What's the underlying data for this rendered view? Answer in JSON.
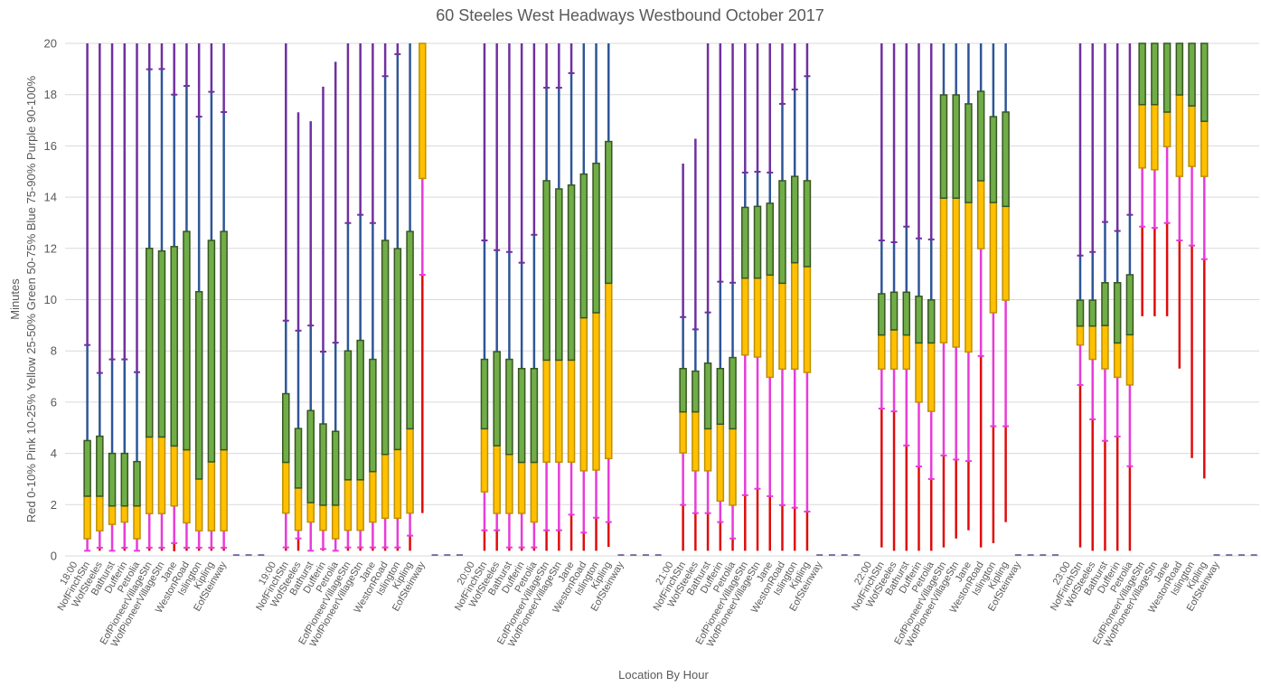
{
  "chart_data": {
    "type": "bar",
    "variant": "percentile-stacked-box",
    "title": "60 Steeles West Headways Westbound October 2017",
    "xlabel": "Location By Hour",
    "ylabel": {
      "line1": "Minutes",
      "line2": "Red 0-10%  Pink 10-25%  Yellow 25-50%  Green 50-75%  Blue 75-90%  Purple 90-100%"
    },
    "ylim": [
      0,
      20
    ],
    "yticks": [
      0,
      2,
      4,
      6,
      8,
      10,
      12,
      14,
      16,
      18,
      20
    ],
    "grid": true,
    "legend": "none (encoded in y-axis title)",
    "percentile_keys": [
      "p0",
      "p10",
      "p25",
      "p50",
      "p75",
      "p90",
      "p100"
    ],
    "note": "values above 20 are clipped at the axis maximum and recorded as 20; null = no data (shown as a dash at 0)",
    "colors": {
      "red_0_10": "#E00B0B",
      "pink_10_25": "#E83CD8",
      "yellow_25_50": "#FFC000",
      "yellow_border": "#BF9000",
      "green_50_75": "#70AD47",
      "green_border": "#375623",
      "blue_75_90": "#2F5597",
      "purple_90_100": "#7030A0",
      "empty_dash": "#5B4A8A",
      "grid": "#D9D9D9",
      "text": "#595959"
    },
    "blank_slots_per_group": 3,
    "stations": [
      "NofFinchStn",
      "WofSteeles",
      "Bathurst",
      "Dufferin",
      "Petrolia",
      "EofPioneerVillageStn",
      "WofPioneerVillageStn",
      "Jane",
      "WestonRoad",
      "Islington",
      "Kipling",
      "EofSteinway"
    ],
    "groups": [
      {
        "hour": "18:00",
        "values": [
          [
            0.2,
            0.2,
            0.67,
            2.33,
            4.5,
            8.23,
            20
          ],
          [
            0.2,
            0.32,
            0.98,
            2.33,
            4.67,
            7.14,
            20
          ],
          [
            0.2,
            0.2,
            1.23,
            1.95,
            4.0,
            7.67,
            20
          ],
          [
            0.2,
            0.32,
            1.32,
            1.95,
            4.0,
            7.67,
            20
          ],
          [
            0.2,
            0.2,
            0.67,
            1.95,
            3.68,
            7.17,
            20
          ],
          [
            0.2,
            0.32,
            1.65,
            4.64,
            12.0,
            18.99,
            20
          ],
          [
            0.2,
            0.32,
            1.65,
            4.64,
            11.9,
            19.0,
            20
          ],
          [
            0.18,
            0.5,
            1.95,
            4.29,
            12.07,
            18.0,
            20
          ],
          [
            0.2,
            0.32,
            1.29,
            4.14,
            12.66,
            18.34,
            20
          ],
          [
            0.2,
            0.32,
            0.98,
            3.0,
            10.31,
            17.14,
            20
          ],
          [
            0.2,
            0.32,
            0.98,
            3.67,
            12.31,
            18.11,
            20
          ],
          [
            0.2,
            0.32,
            0.98,
            4.14,
            12.66,
            17.32,
            20
          ]
        ]
      },
      {
        "hour": "19:00",
        "values": [
          [
            0.2,
            0.33,
            1.67,
            3.65,
            6.33,
            9.18,
            20
          ],
          [
            0.2,
            0.68,
            1.0,
            2.65,
            4.97,
            8.79,
            17.31
          ],
          [
            0.2,
            0.2,
            1.32,
            2.08,
            5.67,
            8.99,
            16.96
          ],
          [
            0.2,
            0.27,
            1.0,
            1.98,
            5.15,
            7.97,
            18.31
          ],
          [
            0.2,
            0.2,
            0.67,
            1.98,
            4.86,
            8.32,
            19.28
          ],
          [
            0.2,
            0.33,
            1.0,
            2.97,
            8.0,
            12.99,
            20
          ],
          [
            0.2,
            0.33,
            1.0,
            2.97,
            8.41,
            13.31,
            20
          ],
          [
            0.2,
            0.33,
            1.32,
            3.29,
            7.67,
            12.99,
            20
          ],
          [
            0.2,
            0.33,
            1.47,
            3.96,
            12.31,
            18.72,
            20
          ],
          [
            0.2,
            0.33,
            1.47,
            4.15,
            11.99,
            19.58,
            20
          ],
          [
            0.2,
            0.79,
            1.67,
            4.96,
            12.66,
            20,
            20
          ],
          [
            1.67,
            10.97,
            14.73,
            20,
            20,
            20,
            20
          ]
        ]
      },
      {
        "hour": "20:00",
        "values": [
          [
            0.2,
            1.0,
            2.5,
            4.96,
            7.67,
            12.31,
            20
          ],
          [
            0.2,
            1.0,
            1.66,
            4.3,
            7.97,
            11.93,
            20
          ],
          [
            0.2,
            0.33,
            1.66,
            3.96,
            7.67,
            11.86,
            20
          ],
          [
            0.2,
            0.33,
            1.66,
            3.65,
            7.31,
            11.44,
            20
          ],
          [
            0.2,
            0.33,
            1.32,
            3.65,
            7.31,
            12.53,
            20
          ],
          [
            0.2,
            1.0,
            3.66,
            7.64,
            14.64,
            18.27,
            20
          ],
          [
            0.2,
            1.0,
            3.66,
            7.64,
            14.32,
            18.27,
            20
          ],
          [
            0.2,
            1.61,
            3.66,
            7.64,
            14.47,
            18.84,
            20
          ],
          [
            0.2,
            0.91,
            3.32,
            9.29,
            14.9,
            20,
            20
          ],
          [
            0.2,
            1.49,
            3.35,
            9.49,
            15.32,
            20,
            20
          ],
          [
            0.35,
            1.32,
            3.8,
            10.64,
            16.17,
            20,
            20
          ],
          null
        ]
      },
      {
        "hour": "21:00",
        "values": [
          [
            0.2,
            1.99,
            4.02,
            5.62,
            7.31,
            9.32,
            15.31
          ],
          [
            0.2,
            1.67,
            3.32,
            5.62,
            7.21,
            8.84,
            16.28
          ],
          [
            0.2,
            1.67,
            3.32,
            4.96,
            7.52,
            9.5,
            20
          ],
          [
            0.2,
            1.32,
            2.14,
            5.14,
            7.31,
            10.7,
            20
          ],
          [
            0.2,
            0.68,
            1.98,
            4.96,
            7.74,
            10.66,
            20
          ],
          [
            0.2,
            2.37,
            7.84,
            10.84,
            13.6,
            14.96,
            20
          ],
          [
            0.2,
            2.62,
            7.76,
            10.84,
            13.64,
            14.99,
            20
          ],
          [
            0.2,
            2.33,
            6.97,
            10.96,
            13.76,
            14.96,
            20
          ],
          [
            0.2,
            1.98,
            7.29,
            10.64,
            14.64,
            17.64,
            20
          ],
          [
            0.2,
            1.88,
            7.29,
            11.44,
            14.81,
            18.2,
            20
          ],
          [
            0.2,
            1.73,
            7.16,
            11.29,
            14.64,
            18.72,
            20
          ],
          null
        ]
      },
      {
        "hour": "22:00",
        "values": [
          [
            0.33,
            5.75,
            7.29,
            8.62,
            10.23,
            12.31,
            20
          ],
          [
            0.2,
            5.64,
            7.29,
            8.82,
            10.29,
            12.24,
            20
          ],
          [
            0.2,
            4.31,
            7.29,
            8.62,
            10.29,
            12.85,
            20
          ],
          [
            0.2,
            3.49,
            6.0,
            8.31,
            10.13,
            12.39,
            20
          ],
          [
            0.2,
            3.0,
            5.64,
            8.31,
            9.99,
            12.35,
            20
          ],
          [
            0.33,
            3.92,
            8.32,
            13.96,
            17.99,
            20,
            20
          ],
          [
            0.68,
            3.76,
            8.15,
            13.96,
            17.99,
            20,
            20
          ],
          [
            1.0,
            3.7,
            7.96,
            13.79,
            17.64,
            20,
            20
          ],
          [
            0.33,
            7.8,
            11.99,
            14.64,
            18.13,
            20,
            20
          ],
          [
            0.5,
            5.06,
            9.49,
            13.79,
            17.14,
            20,
            20
          ],
          [
            1.32,
            5.06,
            9.98,
            13.64,
            17.32,
            20,
            20
          ],
          null
        ]
      },
      {
        "hour": "23:00",
        "values": [
          [
            0.33,
            6.67,
            8.23,
            8.97,
            9.98,
            11.72,
            20
          ],
          [
            0.2,
            5.33,
            7.67,
            8.97,
            9.98,
            11.86,
            20
          ],
          [
            0.2,
            4.49,
            7.3,
            8.99,
            10.66,
            13.03,
            20
          ],
          [
            0.2,
            4.66,
            6.97,
            8.31,
            10.66,
            12.68,
            20
          ],
          [
            0.2,
            3.5,
            6.67,
            8.63,
            10.97,
            13.31,
            20
          ],
          [
            9.35,
            12.85,
            15.14,
            17.61,
            20,
            20,
            20
          ],
          [
            9.35,
            12.8,
            15.07,
            17.61,
            20,
            20,
            20
          ],
          [
            9.35,
            12.99,
            15.97,
            17.32,
            20,
            20,
            20
          ],
          [
            7.31,
            12.31,
            14.81,
            17.99,
            20,
            20,
            20
          ],
          [
            3.82,
            12.11,
            15.2,
            17.56,
            20,
            20,
            20
          ],
          [
            3.02,
            11.58,
            14.81,
            16.96,
            20,
            20,
            20
          ],
          null
        ]
      }
    ]
  }
}
